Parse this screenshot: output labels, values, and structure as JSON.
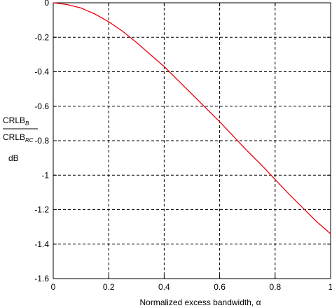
{
  "chart_data": {
    "type": "line",
    "title": "",
    "xlabel": "Normalized excess bandwidth,  α",
    "ylabel": {
      "numerator": "CRLB",
      "numerator_sub": "B",
      "denominator": "CRLB",
      "denominator_sub": "RC",
      "unit": "dB"
    },
    "xlim": [
      0,
      1
    ],
    "ylim": [
      -1.6,
      0
    ],
    "xticks": [
      0,
      0.2,
      0.4,
      0.6,
      0.8,
      1
    ],
    "xtick_labels": [
      "0",
      "0.2",
      "0.4",
      "0.6",
      "0.8",
      "1"
    ],
    "yticks": [
      0,
      -0.2,
      -0.4,
      -0.6,
      -0.8,
      -1,
      -1.2,
      -1.4,
      -1.6
    ],
    "ytick_labels": [
      "0",
      "-0.2",
      "-0.4",
      "-0.6",
      "-0.8",
      "-1",
      "-1.2",
      "-1.4",
      "-1.6"
    ],
    "grid": true,
    "series": [
      {
        "color": "#e8000b",
        "x": [
          0,
          0.05,
          0.1,
          0.15,
          0.2,
          0.25,
          0.3,
          0.35,
          0.4,
          0.45,
          0.5,
          0.55,
          0.6,
          0.65,
          0.7,
          0.75,
          0.8,
          0.85,
          0.9,
          0.95,
          1.0
        ],
        "y": [
          0,
          -0.01,
          -0.03,
          -0.065,
          -0.11,
          -0.165,
          -0.23,
          -0.3,
          -0.37,
          -0.45,
          -0.53,
          -0.61,
          -0.69,
          -0.775,
          -0.86,
          -0.94,
          -1.025,
          -1.11,
          -1.19,
          -1.27,
          -1.34
        ]
      }
    ]
  }
}
